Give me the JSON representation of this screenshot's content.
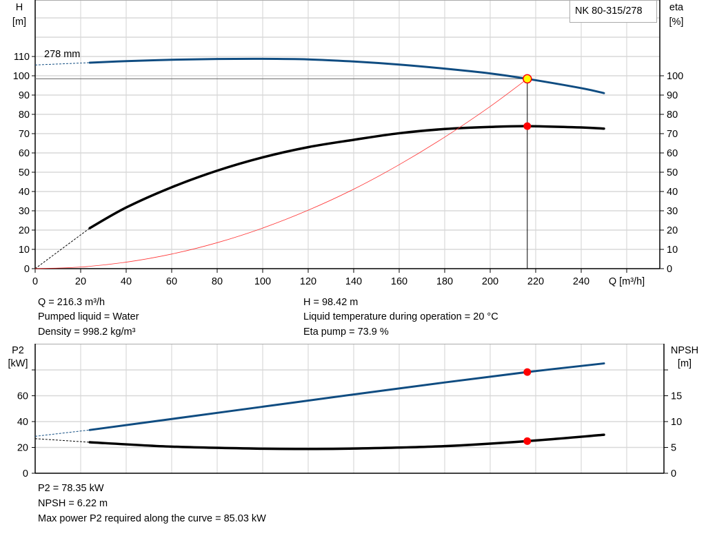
{
  "chart_data": [
    {
      "type": "line",
      "title": "NK 80-315/278",
      "xlabel": "Q [m³/h]",
      "ylabel": "H\n[m]",
      "ylabel_right": "eta\n[%]",
      "xlim": [
        0,
        274
      ],
      "ylim": [
        0,
        139
      ],
      "x_ticks": [
        0,
        20,
        40,
        60,
        80,
        100,
        120,
        140,
        160,
        180,
        200,
        220,
        240
      ],
      "y_ticks": [
        0,
        10,
        20,
        30,
        40,
        50,
        60,
        70,
        80,
        90,
        100,
        110
      ],
      "y_right_ticks": [
        0,
        10,
        20,
        30,
        40,
        50,
        60,
        70,
        80,
        90,
        100
      ],
      "grid": true,
      "curve_label": "278 mm",
      "series": [
        {
          "key": "H",
          "color": "#0f4c81",
          "x": [
            24,
            40,
            60,
            80,
            100,
            120,
            140,
            160,
            180,
            200,
            216.3,
            240,
            250
          ],
          "y": [
            106.8,
            107.6,
            108.3,
            108.7,
            108.8,
            108.5,
            107.4,
            105.8,
            103.7,
            101.2,
            98.42,
            93.6,
            91
          ],
          "extrapolated": {
            "x": [
              0,
              24
            ],
            "y": [
              105.6,
              106.8
            ]
          }
        },
        {
          "key": "eta",
          "color": "#000000",
          "x": [
            24,
            40,
            60,
            80,
            100,
            120,
            140,
            160,
            180,
            200,
            216.3,
            240,
            250
          ],
          "y": [
            21,
            31.7,
            42.2,
            50.8,
            57.7,
            63,
            66.8,
            70.2,
            72.4,
            73.5,
            73.9,
            73.2,
            72.6
          ],
          "extrapolated": {
            "x": [
              0,
              24
            ],
            "y": [
              0,
              21
            ]
          }
        },
        {
          "key": "system",
          "color": "#ff3333",
          "x": [
            0,
            20,
            40,
            60,
            80,
            100,
            120,
            140,
            160,
            180,
            200,
            216.3
          ],
          "y": [
            0,
            0.84,
            3.37,
            7.57,
            13.46,
            21.04,
            30.3,
            41.2,
            53.9,
            68.2,
            84.1,
            98.42
          ]
        }
      ],
      "operating_point": {
        "Q": 216.3,
        "H": 98.42,
        "eta": 73.9
      }
    },
    {
      "type": "line",
      "ylabel": "P2\n[kW]",
      "ylabel_right": "NPSH\n[m]",
      "xlim": [
        0,
        274
      ],
      "ylim": [
        0,
        100
      ],
      "y_ticks": [
        0,
        20,
        40,
        60
      ],
      "y_right_ticks": [
        0,
        5,
        10,
        15
      ],
      "y_right_lim": [
        0,
        25
      ],
      "grid": true,
      "series": [
        {
          "key": "P2",
          "axis": "left",
          "color": "#0f4c81",
          "x": [
            24,
            60,
            100,
            140,
            180,
            216.3,
            250
          ],
          "y": [
            33.5,
            42,
            51.5,
            61,
            70.3,
            78.35,
            85.03
          ],
          "extrapolated": {
            "x": [
              0,
              24
            ],
            "y": [
              28.6,
              33.5
            ]
          }
        },
        {
          "key": "NPSH",
          "axis": "right",
          "color": "#000000",
          "x": [
            24,
            60,
            100,
            120,
            140,
            180,
            216.3,
            250
          ],
          "y": [
            6.0,
            5.15,
            4.75,
            4.7,
            4.78,
            5.25,
            6.22,
            7.45
          ],
          "extrapolated": {
            "x": [
              0,
              24
            ],
            "y": [
              6.7,
              6.0
            ]
          }
        }
      ],
      "operating_point": {
        "Q": 216.3,
        "P2": 78.35,
        "NPSH": 6.22
      }
    }
  ],
  "info_top": {
    "q": "Q = 216.3 m³/h",
    "liquid": "Pumped liquid = Water",
    "density": "Density = 998.2 kg/m³",
    "h": "H = 98.42 m",
    "temp": "Liquid temperature during operation = 20 °C",
    "eta": "Eta pump = 73.9 %"
  },
  "info_bottom": {
    "p2": "P2 = 78.35 kW",
    "npsh": "NPSH = 6.22 m",
    "max_power": "Max power P2 required along the curve = 85.03 kW"
  }
}
